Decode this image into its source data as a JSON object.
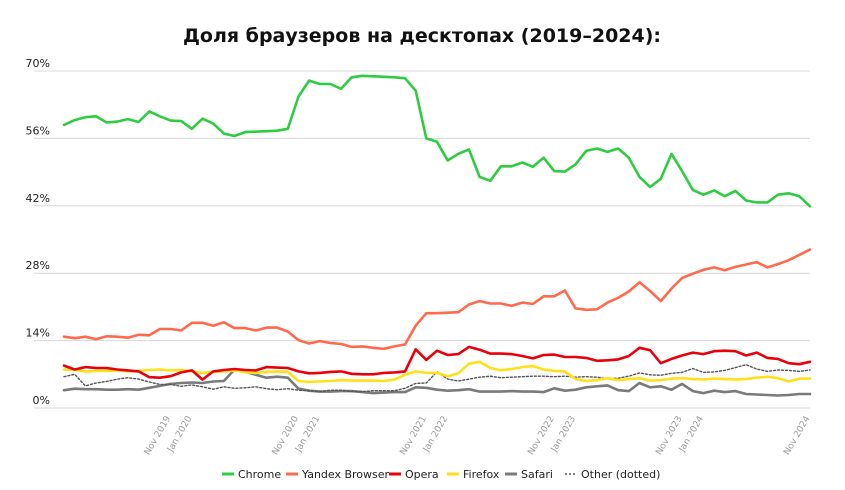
{
  "chart_data": {
    "type": "line",
    "title": "Доля браузеров на десктопах (2019–2024):",
    "xlabel": "",
    "ylabel": "",
    "ylim": [
      0,
      70
    ],
    "grid": true,
    "legend_position": "bottom",
    "y_ticks": [
      "0%",
      "14%",
      "28%",
      "42%",
      "56%",
      "70%"
    ],
    "y_tick_values": [
      0,
      14,
      28,
      42,
      56,
      70
    ],
    "x_ticks": [
      {
        "label": "Nov 2019",
        "index": 10
      },
      {
        "label": "Jan 2020",
        "index": 12
      },
      {
        "label": "Nov 2020",
        "index": 22
      },
      {
        "label": "Jan 2021",
        "index": 24
      },
      {
        "label": "Nov 2021",
        "index": 34
      },
      {
        "label": "Jan 2022",
        "index": 36
      },
      {
        "label": "Nov 2022",
        "index": 46
      },
      {
        "label": "Jan 2023",
        "index": 48
      },
      {
        "label": "Nov 2023",
        "index": 58
      },
      {
        "label": "Jan 2024",
        "index": 60
      },
      {
        "label": "Nov 2024",
        "index": 70
      }
    ],
    "x_count": 71,
    "series": [
      {
        "name": "Chrome",
        "color": "#2ecc40",
        "style": "solid",
        "values": [
          58.8,
          59.8,
          60.4,
          60.6,
          59.3,
          59.5,
          60.0,
          59.4,
          61.6,
          60.6,
          59.7,
          59.6,
          58.0,
          60.1,
          59.1,
          57.0,
          56.5,
          57.3,
          57.4,
          57.5,
          57.6,
          58.0,
          64.7,
          68.0,
          67.3,
          67.3,
          66.3,
          68.7,
          69.0,
          68.9,
          68.8,
          68.7,
          68.5,
          65.9,
          56.0,
          55.3,
          51.4,
          52.8,
          53.7,
          48.0,
          47.2,
          50.2,
          50.2,
          51.0,
          50.1,
          52.0,
          49.2,
          49.1,
          50.6,
          53.4,
          53.9,
          53.2,
          53.9,
          52.0,
          48.0,
          45.9,
          47.6,
          52.8,
          49.2,
          45.3,
          44.3,
          45.2,
          44.0,
          45.1,
          43.1,
          42.7,
          42.7,
          44.3,
          44.6,
          44.0,
          41.9
        ]
      },
      {
        "name": "Yandex Browser",
        "color": "#ff6a4d",
        "style": "solid",
        "values": [
          14.8,
          14.5,
          14.8,
          14.3,
          14.9,
          14.8,
          14.6,
          15.2,
          15.1,
          16.4,
          16.4,
          16.1,
          17.7,
          17.7,
          17.1,
          17.8,
          16.6,
          16.6,
          16.1,
          16.7,
          16.7,
          15.9,
          14.1,
          13.4,
          13.9,
          13.5,
          13.3,
          12.7,
          12.8,
          12.5,
          12.3,
          12.8,
          13.2,
          17.1,
          19.7,
          19.7,
          19.8,
          19.9,
          21.5,
          22.2,
          21.7,
          21.7,
          21.2,
          21.9,
          21.6,
          23.2,
          23.2,
          24.4,
          20.7,
          20.4,
          20.5,
          21.9,
          22.9,
          24.2,
          26.1,
          24.3,
          22.2,
          24.8,
          27.0,
          27.9,
          28.7,
          29.2,
          28.6,
          29.3,
          29.8,
          30.3,
          29.2,
          29.9,
          30.7,
          31.8,
          32.9
        ]
      },
      {
        "name": "Opera",
        "color": "#e8000b",
        "style": "solid",
        "values": [
          8.8,
          8.0,
          8.5,
          8.3,
          8.3,
          8.0,
          7.8,
          7.6,
          6.4,
          6.3,
          6.6,
          7.4,
          7.8,
          5.9,
          7.6,
          7.9,
          8.1,
          7.9,
          7.8,
          8.5,
          8.4,
          8.3,
          7.6,
          7.2,
          7.3,
          7.5,
          7.6,
          7.1,
          7.0,
          7.0,
          7.3,
          7.4,
          7.6,
          12.2,
          10.0,
          11.9,
          11.0,
          11.2,
          12.7,
          12.1,
          11.3,
          11.3,
          11.2,
          10.8,
          10.3,
          11.0,
          11.1,
          10.6,
          10.6,
          10.4,
          9.8,
          9.9,
          10.1,
          10.8,
          12.5,
          12.0,
          9.3,
          10.2,
          10.9,
          11.5,
          11.2,
          11.8,
          11.9,
          11.8,
          10.9,
          11.5,
          10.4,
          10.2,
          9.3,
          9.1,
          9.6
        ]
      },
      {
        "name": "Firefox",
        "color": "#ffe01b",
        "style": "solid",
        "values": [
          8.0,
          7.9,
          7.6,
          7.7,
          7.7,
          7.8,
          7.6,
          7.7,
          7.9,
          8.0,
          7.8,
          7.9,
          7.6,
          7.3,
          7.5,
          7.6,
          7.8,
          7.4,
          7.3,
          7.5,
          7.6,
          7.5,
          5.6,
          5.4,
          5.5,
          5.6,
          5.8,
          5.7,
          5.7,
          5.7,
          5.6,
          5.9,
          6.9,
          7.6,
          7.3,
          7.3,
          6.6,
          7.2,
          9.2,
          9.6,
          8.3,
          7.8,
          8.1,
          8.5,
          8.7,
          8.0,
          7.7,
          7.6,
          6.0,
          5.6,
          5.8,
          6.2,
          5.8,
          6.0,
          6.2,
          5.7,
          5.8,
          6.1,
          6.2,
          6.0,
          5.9,
          6.1,
          6.0,
          5.9,
          6.0,
          6.3,
          6.5,
          6.2,
          5.5,
          6.1,
          6.1
        ]
      },
      {
        "name": "Safari",
        "color": "#7a7a7a",
        "style": "solid",
        "values": [
          3.7,
          4.0,
          3.9,
          3.9,
          3.8,
          3.8,
          3.9,
          3.8,
          4.2,
          4.6,
          5.0,
          5.2,
          5.3,
          5.2,
          5.5,
          5.6,
          8.0,
          7.5,
          6.9,
          6.3,
          6.5,
          6.3,
          4.0,
          3.6,
          3.4,
          3.4,
          3.5,
          3.5,
          3.3,
          3.1,
          3.2,
          3.3,
          3.3,
          4.3,
          4.2,
          3.8,
          3.6,
          3.7,
          3.9,
          3.4,
          3.4,
          3.4,
          3.5,
          3.4,
          3.4,
          3.3,
          4.1,
          3.6,
          3.8,
          4.3,
          4.5,
          4.7,
          3.7,
          3.5,
          5.2,
          4.3,
          4.5,
          3.8,
          5.0,
          3.5,
          3.1,
          3.6,
          3.3,
          3.5,
          2.9,
          2.8,
          2.7,
          2.6,
          2.7,
          2.9,
          2.9
        ]
      },
      {
        "name": "Other (dotted)",
        "color": "#555555",
        "style": "dotted",
        "values": [
          6.5,
          7.0,
          4.6,
          5.2,
          5.5,
          6.0,
          6.3,
          6.0,
          5.4,
          4.9,
          4.9,
          4.5,
          4.8,
          4.4,
          3.9,
          4.4,
          4.1,
          4.2,
          4.4,
          4.0,
          3.8,
          4.0,
          3.7,
          3.6,
          3.4,
          3.7,
          3.7,
          3.4,
          3.4,
          3.6,
          3.6,
          3.6,
          4.1,
          5.1,
          5.2,
          7.5,
          6.0,
          5.6,
          6.0,
          6.4,
          6.6,
          6.3,
          6.4,
          6.5,
          6.6,
          6.6,
          6.5,
          6.6,
          6.4,
          6.5,
          6.4,
          6.1,
          6.2,
          6.6,
          7.3,
          6.9,
          6.8,
          7.2,
          7.4,
          8.2,
          7.4,
          7.5,
          7.8,
          8.4,
          9.0,
          8.1,
          7.6,
          7.9,
          7.8,
          7.6,
          7.9
        ]
      }
    ]
  }
}
